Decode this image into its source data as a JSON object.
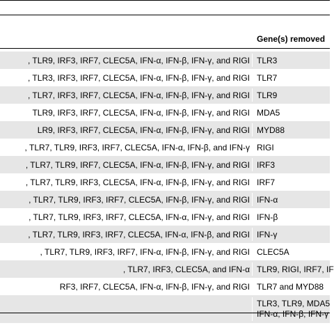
{
  "header": {
    "col_removed": "Gene(s) removed"
  },
  "rows": [
    {
      "remaining": ", TLR9, IRF3, IRF7, CLEC5A, IFN-α, IFN-β, IFN-γ, and RIGI",
      "removed": "TLR3"
    },
    {
      "remaining": ", TLR3, IRF3, IRF7, CLEC5A, IFN-α, IFN-β, IFN-γ, and RIGI",
      "removed": "TLR7"
    },
    {
      "remaining": ", TLR7, IRF3, IRF7, CLEC5A, IFN-α, IFN-β, IFN-γ, and RIGI",
      "removed": "TLR9"
    },
    {
      "remaining": "TLR9, IRF3, IRF7, CLEC5A, IFN-α, IFN-β, IFN-γ, and RIGI",
      "removed": "MDA5"
    },
    {
      "remaining": "LR9, IRF3, IRF7, CLEC5A, IFN-α, IFN-β, IFN-γ, and RIGI",
      "removed": "MYD88"
    },
    {
      "remaining": ", TLR7, TLR9, IRF3, IRF7, CLEC5A, IFN-α, IFN-β, and IFN-γ",
      "removed": "RIGI"
    },
    {
      "remaining": ", TLR7, TLR9, IRF7, CLEC5A, IFN-α, IFN-β, IFN-γ, and RIGI",
      "removed": "IRF3"
    },
    {
      "remaining": ", TLR7, TLR9, IRF3, CLEC5A, IFN-α, IFN-β, IFN-γ, and RIGI",
      "removed": "IRF7"
    },
    {
      "remaining": ", TLR7, TLR9, IRF3, IRF7, CLEC5A, IFN-β, IFN-γ, and RIGI",
      "removed": "IFN-α"
    },
    {
      "remaining": ", TLR7, TLR9, IRF3, IRF7, CLEC5A, IFN-α, IFN-γ, and RIGI",
      "removed": "IFN-β"
    },
    {
      "remaining": ", TLR7, TLR9, IRF3, IRF7, CLEC5A, IFN-α, IFN-β, and RIGI",
      "removed": "IFN-γ"
    },
    {
      "remaining": ", TLR7, TLR9, IRF3, IRF7, IFN-α, IFN-β, IFN-γ, and RIGI",
      "removed": "CLEC5A"
    },
    {
      "remaining": ", TLR7, IRF3, CLEC5A, and IFN-α",
      "removed": "TLR9, RIGI, IRF7, IF"
    },
    {
      "remaining": "RF3, IRF7, CLEC5A, IFN-α, IFN-β, IFN-γ, and RIGI",
      "removed": "TLR7 and MYD88"
    }
  ],
  "last_row": {
    "remaining": "",
    "removed_line1": "TLR3, TLR9, MDA5",
    "removed_line2": "IFN-α, IFN-β, IFN-γ"
  }
}
